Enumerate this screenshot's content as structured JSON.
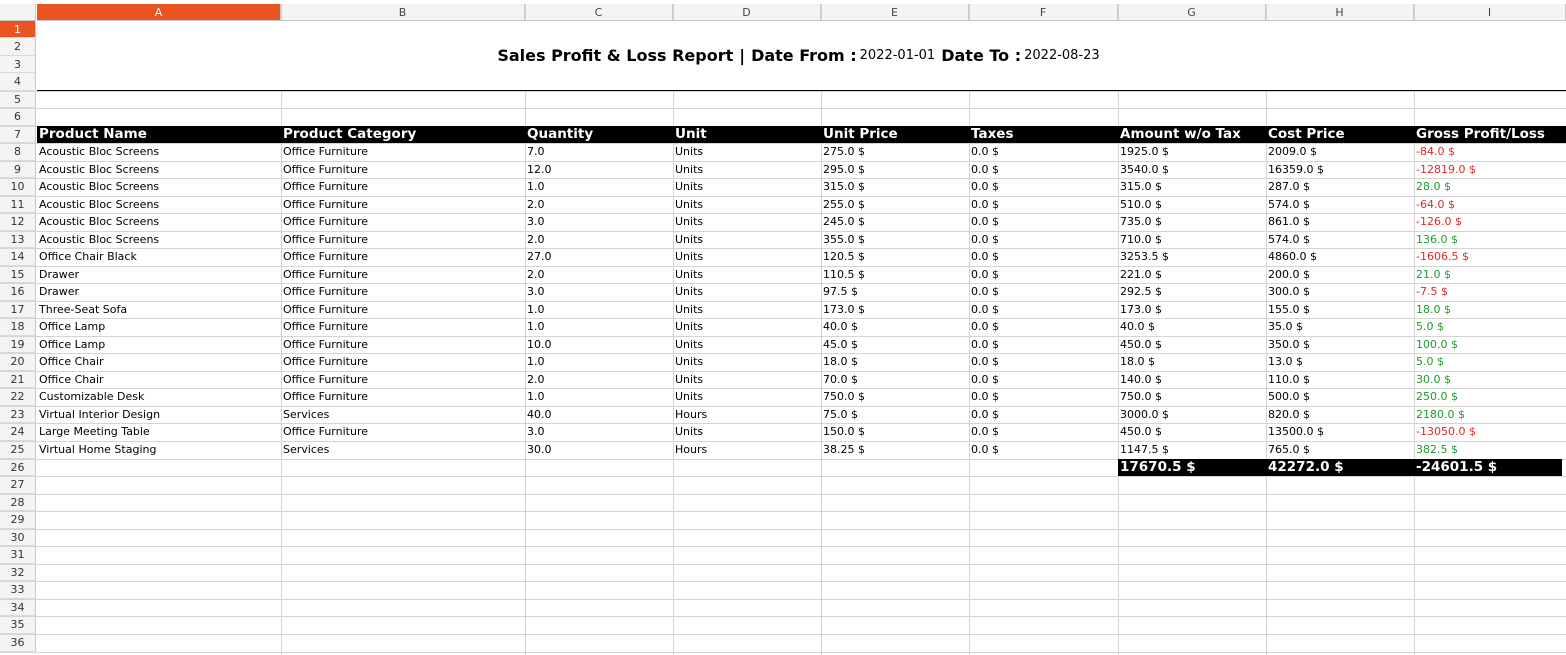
{
  "columns": [
    "A",
    "B",
    "C",
    "D",
    "E",
    "F",
    "G",
    "H",
    "I"
  ],
  "active_column": "A",
  "active_row": 1,
  "colors": {
    "header_accent": "#e95420",
    "profit": "#1f9a2c",
    "loss": "#e32626",
    "header_bg": "#000000"
  },
  "report": {
    "title": "Sales Profit & Loss Report",
    "separator": "|",
    "date_from_label": "Date From :",
    "date_from": "2022-01-01",
    "date_to_label": "Date To :",
    "date_to": "2022-08-23"
  },
  "table": {
    "headers": [
      "Product Name",
      "Product Category",
      "Quantity",
      "Unit",
      "Unit Price",
      "Taxes",
      "Amount w/o Tax",
      "Cost Price",
      "Gross Profit/Loss"
    ],
    "rows": [
      [
        "Acoustic Bloc Screens",
        "Office Furniture",
        "7.0",
        "Units",
        "275.0 $",
        "0.0 $",
        "1925.0 $",
        "2009.0 $",
        "-84.0 $"
      ],
      [
        "Acoustic Bloc Screens",
        "Office Furniture",
        "12.0",
        "Units",
        "295.0 $",
        "0.0 $",
        "3540.0 $",
        "16359.0 $",
        "-12819.0 $"
      ],
      [
        "Acoustic Bloc Screens",
        "Office Furniture",
        "1.0",
        "Units",
        "315.0 $",
        "0.0 $",
        "315.0 $",
        "287.0 $",
        "28.0 $"
      ],
      [
        "Acoustic Bloc Screens",
        "Office Furniture",
        "2.0",
        "Units",
        "255.0 $",
        "0.0 $",
        "510.0 $",
        "574.0 $",
        "-64.0 $"
      ],
      [
        "Acoustic Bloc Screens",
        "Office Furniture",
        "3.0",
        "Units",
        "245.0 $",
        "0.0 $",
        "735.0 $",
        "861.0 $",
        "-126.0 $"
      ],
      [
        "Acoustic Bloc Screens",
        "Office Furniture",
        "2.0",
        "Units",
        "355.0 $",
        "0.0 $",
        "710.0 $",
        "574.0 $",
        "136.0 $"
      ],
      [
        "Office Chair Black",
        "Office Furniture",
        "27.0",
        "Units",
        "120.5 $",
        "0.0 $",
        "3253.5 $",
        "4860.0 $",
        "-1606.5 $"
      ],
      [
        "Drawer",
        "Office Furniture",
        "2.0",
        "Units",
        "110.5 $",
        "0.0 $",
        "221.0 $",
        "200.0 $",
        "21.0 $"
      ],
      [
        "Drawer",
        "Office Furniture",
        "3.0",
        "Units",
        "97.5 $",
        "0.0 $",
        "292.5 $",
        "300.0 $",
        "-7.5 $"
      ],
      [
        "Three-Seat Sofa",
        "Office Furniture",
        "1.0",
        "Units",
        "173.0 $",
        "0.0 $",
        "173.0 $",
        "155.0 $",
        "18.0 $"
      ],
      [
        "Office Lamp",
        "Office Furniture",
        "1.0",
        "Units",
        "40.0 $",
        "0.0 $",
        "40.0 $",
        "35.0 $",
        "5.0 $"
      ],
      [
        "Office Lamp",
        "Office Furniture",
        "10.0",
        "Units",
        "45.0 $",
        "0.0 $",
        "450.0 $",
        "350.0 $",
        "100.0 $"
      ],
      [
        "Office Chair",
        "Office Furniture",
        "1.0",
        "Units",
        "18.0 $",
        "0.0 $",
        "18.0 $",
        "13.0 $",
        "5.0 $"
      ],
      [
        "Office Chair",
        "Office Furniture",
        "2.0",
        "Units",
        "70.0 $",
        "0.0 $",
        "140.0 $",
        "110.0 $",
        "30.0 $"
      ],
      [
        "Customizable Desk",
        "Office Furniture",
        "1.0",
        "Units",
        "750.0 $",
        "0.0 $",
        "750.0 $",
        "500.0 $",
        "250.0 $"
      ],
      [
        "Virtual Interior Design",
        "Services",
        "40.0",
        "Hours",
        "75.0 $",
        "0.0 $",
        "3000.0 $",
        "820.0 $",
        "2180.0 $"
      ],
      [
        "Large Meeting Table",
        "Office Furniture",
        "3.0",
        "Units",
        "150.0 $",
        "0.0 $",
        "450.0 $",
        "13500.0 $",
        "-13050.0 $"
      ],
      [
        "Virtual Home Staging",
        "Services",
        "30.0",
        "Hours",
        "38.25 $",
        "0.0 $",
        "1147.5 $",
        "765.0 $",
        "382.5 $"
      ]
    ],
    "totals": [
      "17670.5 $",
      "42272.0 $",
      "-24601.5 $"
    ]
  }
}
